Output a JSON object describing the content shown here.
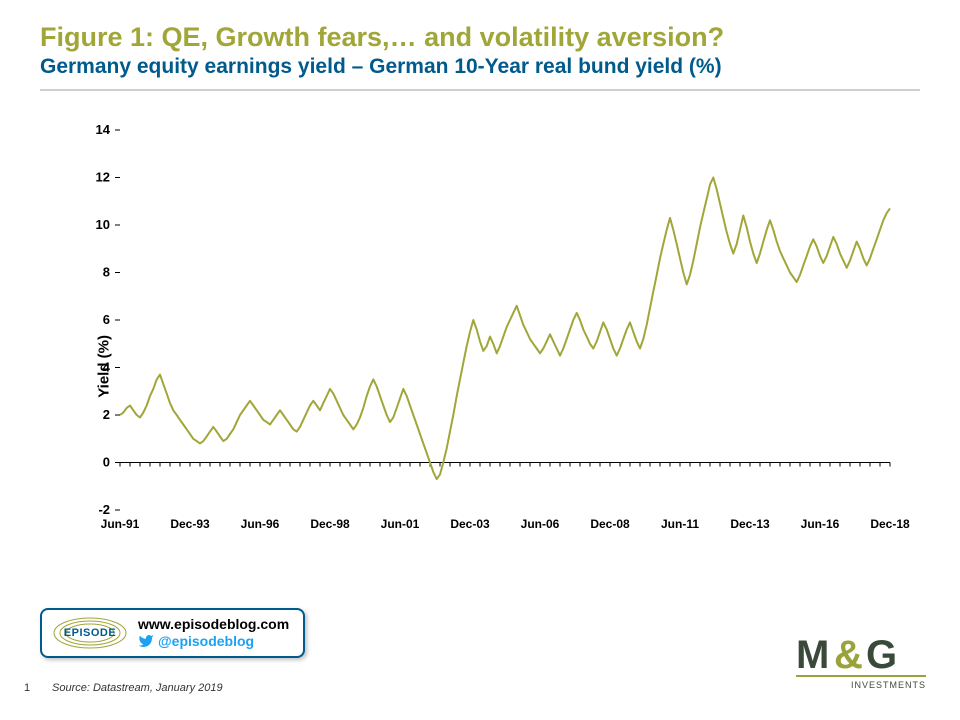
{
  "header": {
    "title": "Figure 1: QE, Growth fears,… and volatility aversion?",
    "subtitle": "Germany equity earnings yield – German 10-Year real bund yield (%)"
  },
  "chart": {
    "type": "line",
    "ylabel": "Yield (%)",
    "ylim": [
      -2,
      14
    ],
    "ytick_step": 2,
    "yticks": [
      -2,
      0,
      2,
      4,
      6,
      8,
      10,
      12,
      14
    ],
    "xlabels": [
      "Jun-91",
      "Dec-93",
      "Jun-96",
      "Dec-98",
      "Jun-01",
      "Dec-03",
      "Jun-06",
      "Dec-08",
      "Jun-11",
      "Dec-13",
      "Jun-16",
      "Dec-18"
    ],
    "line_color": "#a1a639",
    "line_width": 2,
    "axis_color": "#000000",
    "tick_color": "#000000",
    "label_fontsize": 13,
    "label_fontweight": "bold",
    "background_color": "#ffffff",
    "series": [
      2.0,
      2.1,
      2.3,
      2.4,
      2.2,
      2.0,
      1.9,
      2.1,
      2.4,
      2.8,
      3.1,
      3.5,
      3.7,
      3.3,
      2.9,
      2.5,
      2.2,
      2.0,
      1.8,
      1.6,
      1.4,
      1.2,
      1.0,
      0.9,
      0.8,
      0.9,
      1.1,
      1.3,
      1.5,
      1.3,
      1.1,
      0.9,
      1.0,
      1.2,
      1.4,
      1.7,
      2.0,
      2.2,
      2.4,
      2.6,
      2.4,
      2.2,
      2.0,
      1.8,
      1.7,
      1.6,
      1.8,
      2.0,
      2.2,
      2.0,
      1.8,
      1.6,
      1.4,
      1.3,
      1.5,
      1.8,
      2.1,
      2.4,
      2.6,
      2.4,
      2.2,
      2.5,
      2.8,
      3.1,
      2.9,
      2.6,
      2.3,
      2.0,
      1.8,
      1.6,
      1.4,
      1.6,
      1.9,
      2.3,
      2.8,
      3.2,
      3.5,
      3.2,
      2.8,
      2.4,
      2.0,
      1.7,
      1.9,
      2.3,
      2.7,
      3.1,
      2.8,
      2.4,
      2.0,
      1.6,
      1.2,
      0.8,
      0.4,
      0.0,
      -0.4,
      -0.7,
      -0.5,
      0.0,
      0.6,
      1.3,
      2.0,
      2.8,
      3.5,
      4.2,
      4.9,
      5.5,
      6.0,
      5.6,
      5.1,
      4.7,
      4.9,
      5.3,
      5.0,
      4.6,
      4.9,
      5.3,
      5.7,
      6.0,
      6.3,
      6.6,
      6.2,
      5.8,
      5.5,
      5.2,
      5.0,
      4.8,
      4.6,
      4.8,
      5.1,
      5.4,
      5.1,
      4.8,
      4.5,
      4.8,
      5.2,
      5.6,
      6.0,
      6.3,
      6.0,
      5.6,
      5.3,
      5.0,
      4.8,
      5.1,
      5.5,
      5.9,
      5.6,
      5.2,
      4.8,
      4.5,
      4.8,
      5.2,
      5.6,
      5.9,
      5.5,
      5.1,
      4.8,
      5.2,
      5.8,
      6.5,
      7.2,
      7.9,
      8.6,
      9.2,
      9.8,
      10.3,
      9.8,
      9.2,
      8.6,
      8.0,
      7.5,
      7.9,
      8.5,
      9.2,
      9.9,
      10.5,
      11.1,
      11.7,
      12.0,
      11.5,
      10.9,
      10.3,
      9.7,
      9.2,
      8.8,
      9.2,
      9.8,
      10.4,
      9.9,
      9.3,
      8.8,
      8.4,
      8.8,
      9.3,
      9.8,
      10.2,
      9.8,
      9.3,
      8.9,
      8.6,
      8.3,
      8.0,
      7.8,
      7.6,
      7.9,
      8.3,
      8.7,
      9.1,
      9.4,
      9.1,
      8.7,
      8.4,
      8.7,
      9.1,
      9.5,
      9.2,
      8.8,
      8.5,
      8.2,
      8.5,
      8.9,
      9.3,
      9.0,
      8.6,
      8.3,
      8.6,
      9.0,
      9.4,
      9.8,
      10.2,
      10.5,
      10.7
    ]
  },
  "footer": {
    "episode_badge": "EPISODE",
    "url": "www.episodeblog.com",
    "handle": "@episodeblog",
    "page": "1",
    "source": "Source: Datastream, January 2019",
    "logo_main": "M&G",
    "logo_sub": "INVESTMENTS"
  },
  "colors": {
    "olive": "#a1a639",
    "navy": "#005a8c",
    "twitter": "#1da1f2",
    "logo_dark": "#3a4a3a",
    "logo_olive": "#9aa33a"
  }
}
